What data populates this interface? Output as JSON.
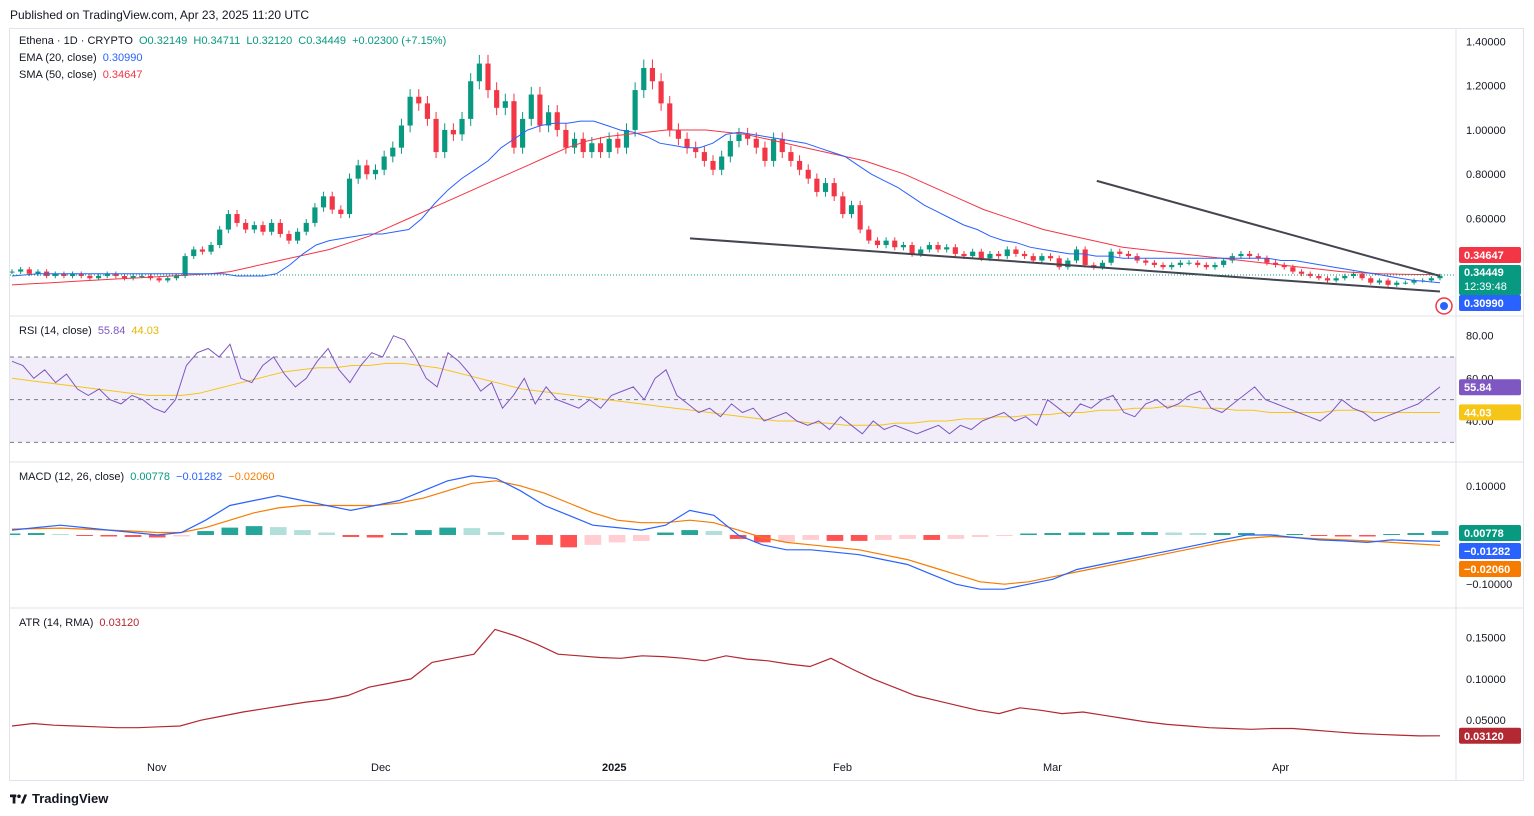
{
  "header": {
    "published": "Published on TradingView.com, Apr 23, 2025 11:20 UTC"
  },
  "footer": {
    "brand": "TradingView",
    "brand_icon": "tradingview-logo-icon"
  },
  "legend": {
    "symbol": "Ethena · 1D · CRYPTO",
    "open": "O0.32149",
    "high": "H0.34711",
    "low": "L0.32120",
    "close": "C0.34449",
    "change": "+0.02300 (+7.15%)",
    "ema_label": "EMA (20, close)",
    "ema_value": "0.30990",
    "sma_label": "SMA (50, close)",
    "sma_value": "0.34647",
    "rsi_label": "RSI (14, close)",
    "rsi_value": "55.84",
    "rsi_ma_value": "44.03",
    "macd_label": "MACD (12, 26, close)",
    "macd_hist": "0.00778",
    "macd_line": "−0.01282",
    "macd_signal": "−0.02060",
    "atr_label": "ATR (14, RMA)",
    "atr_value": "0.03120"
  },
  "colors": {
    "up": "#089981",
    "down": "#f23645",
    "ema": "#2962ff",
    "sma": "#f23645",
    "rsi": "#7e57c2",
    "rsi_ma": "#f5c518",
    "macd": "#2962ff",
    "signal": "#f57c00",
    "atr": "#b22833"
  },
  "chart_data": [
    {
      "type": "candlestick",
      "title": "Ethena · 1D · CRYPTO",
      "x_tick_labels": [
        "Nov",
        "Dec",
        "2025",
        "Feb",
        "Mar",
        "Apr"
      ],
      "y_tick_labels": [
        "1.40000",
        "1.20000",
        "1.00000",
        "0.80000",
        "0.60000"
      ],
      "ylim": [
        0.2,
        1.42
      ],
      "price_labels": {
        "sma": "0.34647",
        "close": "0.34449",
        "countdown": "12:39:48",
        "ema": "0.30990"
      },
      "close_path": [
        0.36,
        0.37,
        0.35,
        0.36,
        0.34,
        0.35,
        0.34,
        0.35,
        0.34,
        0.33,
        0.34,
        0.35,
        0.34,
        0.33,
        0.34,
        0.34,
        0.33,
        0.32,
        0.33,
        0.34,
        0.43,
        0.46,
        0.45,
        0.48,
        0.55,
        0.62,
        0.58,
        0.55,
        0.57,
        0.54,
        0.58,
        0.53,
        0.5,
        0.54,
        0.58,
        0.65,
        0.7,
        0.64,
        0.62,
        0.78,
        0.84,
        0.8,
        0.82,
        0.88,
        0.92,
        1.02,
        1.15,
        1.12,
        1.05,
        0.9,
        1.0,
        0.98,
        1.05,
        1.22,
        1.3,
        1.18,
        1.1,
        1.13,
        0.92,
        1.05,
        1.16,
        1.02,
        1.08,
        1.0,
        0.92,
        0.96,
        0.9,
        0.94,
        0.9,
        0.96,
        0.92,
        1.0,
        1.18,
        1.28,
        1.22,
        1.12,
        1.0,
        0.96,
        0.92,
        0.9,
        0.86,
        0.82,
        0.88,
        0.95,
        0.98,
        0.96,
        0.92,
        0.86,
        0.96,
        0.9,
        0.86,
        0.82,
        0.78,
        0.72,
        0.76,
        0.7,
        0.62,
        0.66,
        0.55,
        0.5,
        0.48,
        0.5,
        0.47,
        0.48,
        0.44,
        0.46,
        0.48,
        0.46,
        0.47,
        0.44,
        0.43,
        0.45,
        0.42,
        0.44,
        0.43,
        0.46,
        0.44,
        0.43,
        0.41,
        0.43,
        0.42,
        0.38,
        0.41,
        0.46,
        0.39,
        0.38,
        0.4,
        0.45,
        0.44,
        0.43,
        0.41,
        0.4,
        0.39,
        0.38,
        0.39,
        0.4,
        0.4,
        0.39,
        0.38,
        0.39,
        0.41,
        0.43,
        0.44,
        0.43,
        0.42,
        0.4,
        0.39,
        0.38,
        0.36,
        0.35,
        0.34,
        0.33,
        0.32,
        0.33,
        0.34,
        0.35,
        0.33,
        0.31,
        0.32,
        0.3,
        0.31,
        0.31,
        0.32,
        0.32,
        0.33,
        0.34
      ],
      "ema20_path": [
        0.34,
        0.345,
        0.35,
        0.35,
        0.35,
        0.35,
        0.35,
        0.35,
        0.35,
        0.35,
        0.35,
        0.35,
        0.35,
        0.35,
        0.35,
        0.35,
        0.35,
        0.34,
        0.34,
        0.34,
        0.35,
        0.39,
        0.44,
        0.48,
        0.5,
        0.51,
        0.52,
        0.53,
        0.53,
        0.54,
        0.55,
        0.6,
        0.67,
        0.73,
        0.78,
        0.82,
        0.86,
        0.92,
        0.96,
        1.0,
        1.02,
        1.03,
        1.03,
        1.04,
        1.04,
        1.02,
        1.0,
        0.99,
        0.97,
        0.94,
        0.93,
        0.92,
        0.92,
        0.94,
        0.98,
        0.99,
        0.98,
        0.97,
        0.96,
        0.95,
        0.94,
        0.92,
        0.9,
        0.88,
        0.84,
        0.8,
        0.77,
        0.74,
        0.7,
        0.66,
        0.63,
        0.6,
        0.57,
        0.55,
        0.52,
        0.5,
        0.49,
        0.47,
        0.46,
        0.45,
        0.44,
        0.44,
        0.43,
        0.43,
        0.42,
        0.42,
        0.42,
        0.42,
        0.42,
        0.42,
        0.42,
        0.42,
        0.42,
        0.42,
        0.42,
        0.42,
        0.41,
        0.41,
        0.4,
        0.39,
        0.38,
        0.37,
        0.36,
        0.35,
        0.34,
        0.33,
        0.32,
        0.315,
        0.31
      ],
      "sma50_path": [
        0.3,
        0.305,
        0.31,
        0.315,
        0.32,
        0.325,
        0.33,
        0.335,
        0.34,
        0.345,
        0.35,
        0.36,
        0.38,
        0.4,
        0.42,
        0.44,
        0.46,
        0.49,
        0.52,
        0.56,
        0.6,
        0.64,
        0.68,
        0.72,
        0.76,
        0.8,
        0.84,
        0.88,
        0.92,
        0.95,
        0.97,
        0.98,
        0.99,
        1.0,
        1.0,
        1.0,
        0.99,
        0.98,
        0.96,
        0.94,
        0.92,
        0.9,
        0.88,
        0.86,
        0.83,
        0.8,
        0.76,
        0.72,
        0.68,
        0.64,
        0.61,
        0.58,
        0.55,
        0.53,
        0.51,
        0.49,
        0.47,
        0.46,
        0.45,
        0.44,
        0.43,
        0.42,
        0.41,
        0.4,
        0.39,
        0.38,
        0.37,
        0.36,
        0.355,
        0.35,
        0.348,
        0.347,
        0.3465
      ],
      "trendline_upper": [
        [
          0.76,
          0.77
        ],
        [
          1.0,
          0.34
        ]
      ],
      "trendline_lower": [
        [
          0.0,
          0.51
        ],
        [
          1.0,
          0.27
        ]
      ]
    },
    {
      "type": "line",
      "title": "RSI (14, close)",
      "y_tick_labels": [
        "80.00",
        "60.00",
        "40.00"
      ],
      "bands": [
        30,
        50,
        70
      ],
      "ylim": [
        25,
        85
      ],
      "series": [
        {
          "name": "RSI",
          "values": [
            68,
            66,
            60,
            64,
            58,
            62,
            55,
            52,
            55,
            50,
            48,
            52,
            50,
            46,
            44,
            50,
            66,
            72,
            74,
            70,
            76,
            60,
            58,
            66,
            70,
            62,
            56,
            60,
            68,
            74,
            64,
            58,
            66,
            72,
            70,
            80,
            78,
            70,
            60,
            56,
            72,
            68,
            62,
            54,
            58,
            46,
            52,
            60,
            48,
            56,
            50,
            48,
            46,
            50,
            46,
            52,
            54,
            56,
            50,
            60,
            64,
            52,
            48,
            44,
            46,
            42,
            48,
            44,
            46,
            40,
            42,
            44,
            40,
            38,
            40,
            36,
            42,
            38,
            34,
            40,
            36,
            38,
            36,
            34,
            36,
            38,
            34,
            38,
            36,
            40,
            42,
            44,
            40,
            42,
            38,
            50,
            46,
            42,
            48,
            46,
            50,
            52,
            44,
            42,
            48,
            50,
            46,
            48,
            52,
            54,
            46,
            44,
            48,
            52,
            56,
            50,
            48,
            46,
            44,
            42,
            40,
            44,
            50,
            46,
            44,
            40,
            42,
            44,
            46,
            48,
            52,
            56
          ]
        },
        {
          "name": "RSI MA",
          "values": [
            60,
            59,
            58,
            57,
            56,
            55,
            54,
            53,
            52,
            52,
            52,
            53,
            55,
            57,
            59,
            61,
            63,
            64,
            65,
            65,
            66,
            66,
            67,
            67,
            66,
            65,
            63,
            61,
            59,
            57,
            55,
            54,
            53,
            52,
            51,
            50,
            49,
            48,
            47,
            46,
            45,
            44,
            43,
            42,
            41,
            40,
            40,
            39,
            39,
            38,
            38,
            38,
            39,
            39,
            40,
            40,
            41,
            41,
            42,
            42,
            43,
            43,
            44,
            44,
            45,
            45,
            46,
            46,
            47,
            47,
            46,
            46,
            45,
            45,
            44,
            44,
            44,
            44,
            45,
            45,
            44,
            44,
            44,
            44,
            44
          ]
        }
      ]
    },
    {
      "type": "bar+line",
      "title": "MACD (12, 26, close)",
      "y_tick_labels": [
        "0.10000",
        "−0.10000"
      ],
      "ylim": [
        -0.13,
        0.13
      ],
      "series": [
        {
          "name": "MACD",
          "values": [
            0.01,
            0.015,
            0.02,
            0.015,
            0.01,
            0.005,
            0.0,
            0.005,
            0.03,
            0.06,
            0.07,
            0.08,
            0.07,
            0.06,
            0.05,
            0.06,
            0.07,
            0.09,
            0.11,
            0.12,
            0.115,
            0.09,
            0.06,
            0.04,
            0.02,
            0.015,
            0.01,
            0.02,
            0.05,
            0.04,
            0.0,
            -0.02,
            -0.03,
            -0.03,
            -0.035,
            -0.04,
            -0.05,
            -0.06,
            -0.08,
            -0.1,
            -0.11,
            -0.11,
            -0.1,
            -0.09,
            -0.07,
            -0.06,
            -0.05,
            -0.04,
            -0.03,
            -0.02,
            -0.01,
            0.0,
            0.0,
            -0.005,
            -0.01,
            -0.012,
            -0.015,
            -0.01,
            -0.012,
            -0.013
          ]
        },
        {
          "name": "Signal",
          "values": [
            0.012,
            0.013,
            0.014,
            0.012,
            0.01,
            0.008,
            0.005,
            0.005,
            0.015,
            0.03,
            0.045,
            0.055,
            0.06,
            0.06,
            0.06,
            0.06,
            0.065,
            0.075,
            0.09,
            0.105,
            0.11,
            0.1,
            0.085,
            0.065,
            0.045,
            0.03,
            0.025,
            0.025,
            0.03,
            0.025,
            0.01,
            -0.005,
            -0.015,
            -0.02,
            -0.025,
            -0.03,
            -0.04,
            -0.05,
            -0.065,
            -0.08,
            -0.095,
            -0.1,
            -0.095,
            -0.085,
            -0.075,
            -0.065,
            -0.055,
            -0.045,
            -0.035,
            -0.025,
            -0.015,
            -0.007,
            -0.003,
            -0.005,
            -0.008,
            -0.01,
            -0.012,
            -0.015,
            -0.018,
            -0.021
          ]
        },
        {
          "name": "Histogram",
          "values": [
            0.003,
            0.004,
            0.002,
            -0.002,
            -0.003,
            -0.004,
            -0.005,
            -0.003,
            0.008,
            0.015,
            0.018,
            0.016,
            0.01,
            0.005,
            -0.004,
            -0.005,
            0.004,
            0.01,
            0.015,
            0.014,
            0.006,
            -0.01,
            -0.02,
            -0.025,
            -0.02,
            -0.015,
            -0.012,
            0.005,
            0.01,
            0.008,
            -0.008,
            -0.015,
            -0.014,
            -0.01,
            -0.012,
            -0.012,
            -0.01,
            -0.008,
            -0.01,
            -0.008,
            -0.004,
            -0.001,
            0.003,
            0.004,
            0.005,
            0.005,
            0.006,
            0.006,
            0.005,
            0.004,
            0.004,
            0.004,
            0.002,
            0.002,
            -0.002,
            -0.003,
            -0.003,
            0.002,
            0.004,
            0.008
          ]
        }
      ]
    },
    {
      "type": "line",
      "title": "ATR (14, RMA)",
      "y_tick_labels": [
        "0.15000",
        "0.10000",
        "0.05000"
      ],
      "ylim": [
        0.02,
        0.175
      ],
      "series": [
        {
          "name": "ATR",
          "values": [
            0.043,
            0.046,
            0.044,
            0.043,
            0.042,
            0.041,
            0.041,
            0.042,
            0.043,
            0.05,
            0.055,
            0.06,
            0.064,
            0.068,
            0.072,
            0.075,
            0.08,
            0.09,
            0.095,
            0.1,
            0.12,
            0.125,
            0.13,
            0.16,
            0.152,
            0.142,
            0.13,
            0.128,
            0.126,
            0.125,
            0.128,
            0.127,
            0.125,
            0.122,
            0.128,
            0.124,
            0.122,
            0.118,
            0.115,
            0.125,
            0.112,
            0.1,
            0.09,
            0.08,
            0.074,
            0.068,
            0.062,
            0.058,
            0.065,
            0.062,
            0.058,
            0.06,
            0.056,
            0.052,
            0.048,
            0.045,
            0.043,
            0.041,
            0.04,
            0.039,
            0.04,
            0.04,
            0.038,
            0.036,
            0.034,
            0.033,
            0.032,
            0.031,
            0.0312
          ]
        }
      ]
    }
  ]
}
